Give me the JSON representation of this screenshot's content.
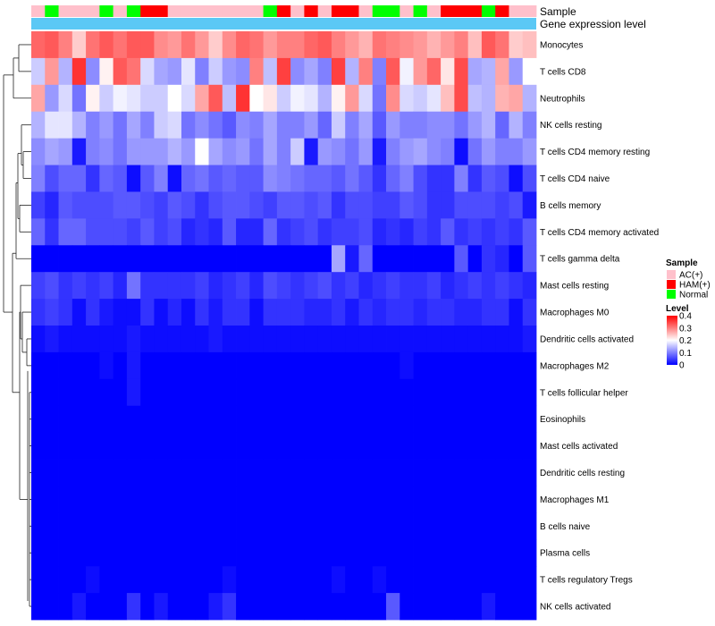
{
  "chart_data": {
    "type": "heatmap",
    "title": "",
    "annotation_tracks": [
      "Sample",
      "Gene expression level"
    ],
    "rows": [
      "Monocytes",
      "T cells CD8",
      "Neutrophils",
      "NK cells resting",
      "T cells CD4 memory resting",
      "T cells CD4 naive",
      "B cells memory",
      "T cells CD4 memory activated",
      "T cells gamma delta",
      "Mast cells resting",
      "Macrophages M0",
      "Dendritic cells activated",
      "Macrophages M2",
      "T cells follicular helper",
      "Eosinophils",
      "Mast cells activated",
      "Dendritic cells resting",
      "Macrophages M1",
      "B cells naive",
      "Plasma cells",
      "T cells regulatory  Tregs",
      "NK cells activated"
    ],
    "sample_groups": [
      "A",
      "N",
      "A",
      "A",
      "A",
      "N",
      "A",
      "N",
      "H",
      "H",
      "A",
      "A",
      "A",
      "A",
      "A",
      "A",
      "A",
      "N",
      "H",
      "A",
      "H",
      "A",
      "H",
      "H",
      "A",
      "N",
      "N",
      "A",
      "N",
      "A",
      "H",
      "H",
      "H",
      "N",
      "H",
      "A",
      "A"
    ],
    "values": [
      [
        0.32,
        0.33,
        0.3,
        0.24,
        0.31,
        0.33,
        0.31,
        0.33,
        0.33,
        0.29,
        0.28,
        0.31,
        0.28,
        0.24,
        0.29,
        0.32,
        0.31,
        0.28,
        0.3,
        0.3,
        0.32,
        0.33,
        0.3,
        0.28,
        0.26,
        0.31,
        0.3,
        0.29,
        0.28,
        0.26,
        0.28,
        0.3,
        0.25,
        0.33,
        0.31,
        0.24,
        0.25
      ],
      [
        0.16,
        0.28,
        0.14,
        0.36,
        0.11,
        0.21,
        0.33,
        0.31,
        0.17,
        0.13,
        0.12,
        0.18,
        0.1,
        0.16,
        0.12,
        0.11,
        0.3,
        0.15,
        0.35,
        0.11,
        0.13,
        0.1,
        0.35,
        0.14,
        0.3,
        0.1,
        0.33,
        0.19,
        0.28,
        0.32,
        0.22,
        0.34,
        0.13,
        0.14,
        0.27,
        0.12,
        0.2
      ],
      [
        0.27,
        0.12,
        0.17,
        0.09,
        0.21,
        0.16,
        0.19,
        0.18,
        0.16,
        0.16,
        0.2,
        0.17,
        0.27,
        0.33,
        0.15,
        0.36,
        0.2,
        0.22,
        0.16,
        0.19,
        0.18,
        0.14,
        0.21,
        0.28,
        0.17,
        0.09,
        0.29,
        0.17,
        0.16,
        0.18,
        0.25,
        0.34,
        0.15,
        0.14,
        0.26,
        0.27,
        0.14
      ],
      [
        0.14,
        0.18,
        0.18,
        0.14,
        0.1,
        0.12,
        0.09,
        0.13,
        0.1,
        0.16,
        0.17,
        0.09,
        0.11,
        0.09,
        0.07,
        0.11,
        0.1,
        0.13,
        0.1,
        0.1,
        0.12,
        0.08,
        0.16,
        0.1,
        0.13,
        0.07,
        0.12,
        0.1,
        0.1,
        0.11,
        0.11,
        0.09,
        0.12,
        0.14,
        0.08,
        0.14,
        0.1
      ],
      [
        0.11,
        0.13,
        0.12,
        0.02,
        0.1,
        0.11,
        0.09,
        0.12,
        0.12,
        0.12,
        0.14,
        0.12,
        0.2,
        0.13,
        0.11,
        0.12,
        0.09,
        0.13,
        0.1,
        0.16,
        0.02,
        0.12,
        0.11,
        0.09,
        0.12,
        0.02,
        0.1,
        0.12,
        0.13,
        0.11,
        0.1,
        0.01,
        0.09,
        0.12,
        0.1,
        0.1,
        0.12
      ],
      [
        0.1,
        0.06,
        0.08,
        0.08,
        0.04,
        0.08,
        0.07,
        0.01,
        0.07,
        0.1,
        0.01,
        0.08,
        0.09,
        0.07,
        0.08,
        0.07,
        0.07,
        0.11,
        0.1,
        0.09,
        0.08,
        0.08,
        0.07,
        0.09,
        0.07,
        0.04,
        0.08,
        0.1,
        0.06,
        0.04,
        0.04,
        0.1,
        0.04,
        0.07,
        0.06,
        0.01,
        0.06
      ],
      [
        0.05,
        0.03,
        0.07,
        0.06,
        0.06,
        0.06,
        0.07,
        0.07,
        0.06,
        0.05,
        0.07,
        0.06,
        0.04,
        0.06,
        0.07,
        0.07,
        0.06,
        0.05,
        0.07,
        0.07,
        0.06,
        0.07,
        0.04,
        0.06,
        0.06,
        0.05,
        0.05,
        0.07,
        0.06,
        0.04,
        0.04,
        0.06,
        0.06,
        0.06,
        0.05,
        0.06,
        0.02
      ],
      [
        0.08,
        0.04,
        0.08,
        0.08,
        0.06,
        0.06,
        0.06,
        0.05,
        0.07,
        0.05,
        0.06,
        0.03,
        0.04,
        0.03,
        0.07,
        0.03,
        0.03,
        0.08,
        0.04,
        0.05,
        0.06,
        0.04,
        0.05,
        0.05,
        0.06,
        0.03,
        0.04,
        0.03,
        0.05,
        0.04,
        0.07,
        0.04,
        0.05,
        0.04,
        0.05,
        0.04,
        0.07
      ],
      [
        0.0,
        0.0,
        0.0,
        0.0,
        0.0,
        0.0,
        0.0,
        0.0,
        0.0,
        0.0,
        0.0,
        0.0,
        0.0,
        0.0,
        0.0,
        0.0,
        0.0,
        0.0,
        0.0,
        0.0,
        0.0,
        0.0,
        0.13,
        0.02,
        0.08,
        0.0,
        0.0,
        0.0,
        0.0,
        0.0,
        0.0,
        0.07,
        0.0,
        0.04,
        0.03,
        0.0,
        0.07
      ],
      [
        0.05,
        0.06,
        0.04,
        0.05,
        0.04,
        0.05,
        0.03,
        0.09,
        0.04,
        0.04,
        0.04,
        0.04,
        0.05,
        0.03,
        0.04,
        0.05,
        0.03,
        0.06,
        0.05,
        0.04,
        0.05,
        0.06,
        0.04,
        0.05,
        0.03,
        0.04,
        0.05,
        0.04,
        0.04,
        0.05,
        0.03,
        0.04,
        0.05,
        0.04,
        0.05,
        0.04,
        0.03
      ],
      [
        0.04,
        0.05,
        0.04,
        0.01,
        0.04,
        0.02,
        0.01,
        0.01,
        0.04,
        0.01,
        0.03,
        0.01,
        0.04,
        0.02,
        0.04,
        0.04,
        0.01,
        0.04,
        0.04,
        0.04,
        0.03,
        0.03,
        0.04,
        0.02,
        0.04,
        0.03,
        0.04,
        0.04,
        0.03,
        0.04,
        0.04,
        0.03,
        0.03,
        0.04,
        0.04,
        0.01,
        0.04
      ],
      [
        0.01,
        0.02,
        0.01,
        0.01,
        0.01,
        0.01,
        0.01,
        0.02,
        0.01,
        0.01,
        0.01,
        0.01,
        0.01,
        0.02,
        0.01,
        0.01,
        0.01,
        0.01,
        0.01,
        0.01,
        0.01,
        0.01,
        0.01,
        0.01,
        0.01,
        0.01,
        0.01,
        0.01,
        0.01,
        0.01,
        0.01,
        0.01,
        0.01,
        0.01,
        0.01,
        0.01,
        0.02
      ],
      [
        0.0,
        0.0,
        0.0,
        0.0,
        0.0,
        0.01,
        0.0,
        0.02,
        0.0,
        0.0,
        0.0,
        0.0,
        0.0,
        0.0,
        0.0,
        0.0,
        0.0,
        0.0,
        0.0,
        0.0,
        0.0,
        0.0,
        0.0,
        0.0,
        0.0,
        0.0,
        0.0,
        0.01,
        0.0,
        0.0,
        0.0,
        0.0,
        0.0,
        0.0,
        0.0,
        0.0,
        0.0
      ],
      [
        0.0,
        0.0,
        0.0,
        0.0,
        0.0,
        0.0,
        0.0,
        0.02,
        0.0,
        0.0,
        0.0,
        0.0,
        0.0,
        0.0,
        0.0,
        0.0,
        0.0,
        0.0,
        0.0,
        0.0,
        0.0,
        0.0,
        0.0,
        0.0,
        0.0,
        0.0,
        0.0,
        0.0,
        0.0,
        0.0,
        0.0,
        0.0,
        0.0,
        0.0,
        0.0,
        0.0,
        0.0
      ],
      [
        0.0,
        0.0,
        0.0,
        0.0,
        0.0,
        0.0,
        0.0,
        0.0,
        0.0,
        0.0,
        0.0,
        0.0,
        0.0,
        0.0,
        0.0,
        0.0,
        0.0,
        0.0,
        0.0,
        0.0,
        0.0,
        0.0,
        0.0,
        0.0,
        0.0,
        0.0,
        0.0,
        0.0,
        0.0,
        0.0,
        0.0,
        0.0,
        0.0,
        0.0,
        0.0,
        0.0,
        0.0
      ],
      [
        0.0,
        0.0,
        0.0,
        0.0,
        0.0,
        0.0,
        0.0,
        0.0,
        0.0,
        0.0,
        0.0,
        0.0,
        0.0,
        0.0,
        0.0,
        0.0,
        0.0,
        0.0,
        0.0,
        0.0,
        0.0,
        0.0,
        0.0,
        0.0,
        0.0,
        0.0,
        0.0,
        0.0,
        0.0,
        0.0,
        0.0,
        0.0,
        0.0,
        0.0,
        0.0,
        0.0,
        0.0
      ],
      [
        0.0,
        0.0,
        0.0,
        0.0,
        0.0,
        0.0,
        0.0,
        0.0,
        0.0,
        0.0,
        0.0,
        0.0,
        0.0,
        0.0,
        0.0,
        0.0,
        0.0,
        0.0,
        0.0,
        0.0,
        0.0,
        0.0,
        0.0,
        0.0,
        0.0,
        0.0,
        0.0,
        0.0,
        0.0,
        0.0,
        0.0,
        0.0,
        0.0,
        0.0,
        0.0,
        0.0,
        0.0
      ],
      [
        0.0,
        0.0,
        0.0,
        0.0,
        0.0,
        0.0,
        0.0,
        0.0,
        0.0,
        0.0,
        0.0,
        0.0,
        0.0,
        0.0,
        0.0,
        0.0,
        0.0,
        0.0,
        0.0,
        0.0,
        0.0,
        0.0,
        0.0,
        0.0,
        0.0,
        0.0,
        0.0,
        0.0,
        0.0,
        0.0,
        0.0,
        0.0,
        0.0,
        0.0,
        0.0,
        0.0,
        0.0
      ],
      [
        0.0,
        0.0,
        0.0,
        0.0,
        0.0,
        0.0,
        0.0,
        0.0,
        0.0,
        0.0,
        0.0,
        0.0,
        0.0,
        0.0,
        0.0,
        0.0,
        0.0,
        0.0,
        0.0,
        0.0,
        0.0,
        0.0,
        0.0,
        0.0,
        0.0,
        0.0,
        0.0,
        0.0,
        0.0,
        0.0,
        0.0,
        0.0,
        0.0,
        0.0,
        0.0,
        0.0,
        0.0
      ],
      [
        0.0,
        0.0,
        0.0,
        0.0,
        0.0,
        0.0,
        0.0,
        0.0,
        0.0,
        0.0,
        0.0,
        0.0,
        0.0,
        0.0,
        0.0,
        0.0,
        0.0,
        0.0,
        0.0,
        0.0,
        0.0,
        0.0,
        0.0,
        0.0,
        0.0,
        0.0,
        0.0,
        0.0,
        0.0,
        0.0,
        0.0,
        0.0,
        0.0,
        0.0,
        0.0,
        0.0,
        0.0
      ],
      [
        0.0,
        0.0,
        0.0,
        0.0,
        0.01,
        0.0,
        0.0,
        0.0,
        0.0,
        0.0,
        0.0,
        0.0,
        0.0,
        0.0,
        0.01,
        0.0,
        0.0,
        0.0,
        0.0,
        0.0,
        0.0,
        0.0,
        0.01,
        0.0,
        0.0,
        0.01,
        0.0,
        0.0,
        0.0,
        0.0,
        0.0,
        0.0,
        0.0,
        0.0,
        0.0,
        0.0,
        0.0
      ],
      [
        0.0,
        0.0,
        0.0,
        0.02,
        0.0,
        0.0,
        0.0,
        0.04,
        0.0,
        0.02,
        0.0,
        0.0,
        0.0,
        0.02,
        0.04,
        0.0,
        0.0,
        0.0,
        0.0,
        0.0,
        0.0,
        0.0,
        0.0,
        0.0,
        0.0,
        0.0,
        0.07,
        0.0,
        0.0,
        0.0,
        0.0,
        0.0,
        0.0,
        0.02,
        0.0,
        0.0,
        0.0
      ]
    ],
    "color_scale": {
      "min": 0,
      "mid": 0.2,
      "max": 0.4,
      "low": "#0000ff",
      "midcolor": "#ffffff",
      "high": "#ff0000"
    },
    "legend": {
      "sample_title": "Sample",
      "sample_entries": [
        {
          "key": "A",
          "label": "AC(+)",
          "color": "#ffc0cb"
        },
        {
          "key": "H",
          "label": "HAM(+)",
          "color": "#ff0000"
        },
        {
          "key": "N",
          "label": "Normal",
          "color": "#00ff00"
        }
      ],
      "level_title": "Level",
      "level_ticks": [
        0.4,
        0.3,
        0.2,
        0.1,
        0
      ],
      "placement": "right"
    },
    "gene_expression_color": "#5bc8f5"
  }
}
